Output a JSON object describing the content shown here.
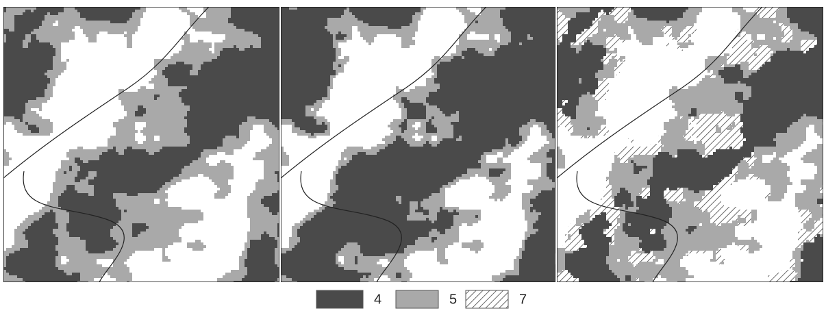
{
  "legend": {
    "items": [
      {
        "label": "4",
        "fill": "#4a4a4a"
      },
      {
        "label": "5",
        "fill": "#a9a9a9"
      },
      {
        "label": "7",
        "fill": "diagonal-hatch"
      }
    ]
  }
}
